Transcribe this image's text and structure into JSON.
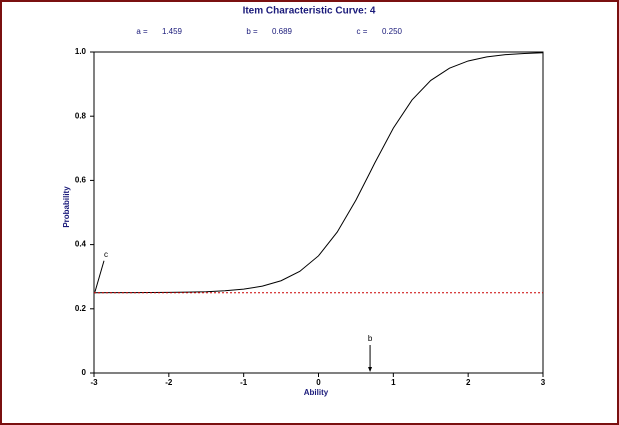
{
  "chart_data": {
    "type": "line",
    "title": "Item Characteristic Curve: 4",
    "params": [
      {
        "name": "a =",
        "value": "1.459"
      },
      {
        "name": "b =",
        "value": "0.689"
      },
      {
        "name": "c =",
        "value": "0.250"
      }
    ],
    "x_label": "Ability",
    "y_label": "Probability",
    "series": [
      {
        "color": "#000000",
        "x": [
          -3,
          -2.75,
          -2.5,
          -2.25,
          -2,
          -1.75,
          -1.5,
          -1.25,
          -1,
          -0.75,
          -0.5,
          -0.25,
          0,
          0.25,
          0.5,
          0.689,
          0.75,
          1,
          1.25,
          1.5,
          1.75,
          2,
          2.25,
          2.5,
          2.75,
          3
        ],
        "values": [
          0.25,
          0.2502,
          0.2503,
          0.2506,
          0.251,
          0.2518,
          0.2533,
          0.2561,
          0.2612,
          0.2706,
          0.2874,
          0.3166,
          0.365,
          0.4389,
          0.5387,
          0.625,
          0.6533,
          0.7629,
          0.8506,
          0.9115,
          0.9497,
          0.9721,
          0.9848,
          0.9917,
          0.9955,
          0.9976
        ]
      },
      {
        "color": "#cc0000",
        "dashed": true,
        "x": [
          -3,
          3
        ],
        "values": [
          0.25,
          0.25
        ]
      }
    ],
    "annotations": [
      {
        "text": "c",
        "x": -3,
        "y": 0.25
      },
      {
        "text": "b",
        "x": 0.689,
        "y": 0
      }
    ],
    "xlim": [
      -3,
      3
    ],
    "ylim": [
      0,
      1
    ],
    "xticks": [
      -3,
      -2,
      -1,
      0,
      1,
      2,
      3
    ],
    "yticks": [
      0,
      0.2,
      0.4,
      0.6,
      0.8,
      {
        "value": 1,
        "label": "1.0"
      }
    ]
  }
}
